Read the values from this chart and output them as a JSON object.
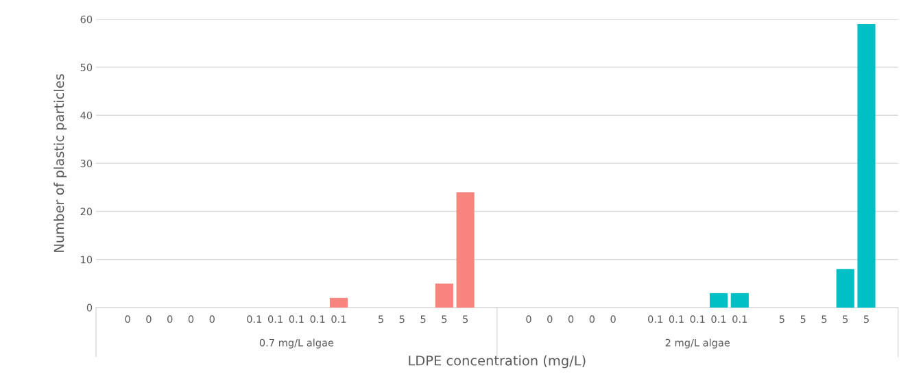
{
  "chart_data": {
    "type": "bar",
    "xlabel": "LDPE concentration (mg/L)",
    "ylabel": "Number of plastic particles",
    "categories": [
      null,
      "0",
      "0",
      "0",
      "0",
      "0",
      null,
      "0.1",
      "0.1",
      "0.1",
      "0.1",
      "0.1",
      null,
      "5",
      "5",
      "5",
      "5",
      "5",
      null,
      null,
      "0",
      "0",
      "0",
      "0",
      "0",
      null,
      "0.1",
      "0.1",
      "0.1",
      "0.1",
      "0.1",
      null,
      "5",
      "5",
      "5",
      "5",
      "5",
      null
    ],
    "values": [
      null,
      0,
      0,
      0,
      0,
      0,
      null,
      0,
      0,
      0,
      0,
      2,
      null,
      0,
      0,
      0,
      5,
      24,
      null,
      null,
      0,
      0,
      0,
      0,
      0,
      null,
      0,
      0,
      0,
      3,
      3,
      null,
      0,
      0,
      0,
      8,
      59,
      null
    ],
    "colors": [
      null,
      "#f8857d",
      "#f8857d",
      "#f8857d",
      "#f8857d",
      "#f8857d",
      null,
      "#f8857d",
      "#f8857d",
      "#f8857d",
      "#f8857d",
      "#f8857d",
      null,
      "#f8857d",
      "#f8857d",
      "#f8857d",
      "#f8857d",
      "#f8857d",
      null,
      null,
      "#00c0c6",
      "#00c0c6",
      "#00c0c6",
      "#00c0c6",
      "#00c0c6",
      null,
      "#00c0c6",
      "#00c0c6",
      "#00c0c6",
      "#00c0c6",
      "#00c0c6",
      null,
      "#00c0c6",
      "#00c0c6",
      "#00c0c6",
      "#00c0c6",
      "#00c0c6",
      null
    ],
    "annotations": [
      "0.7 mg/L algae",
      "2 mg/L algae"
    ],
    "ylim": [
      0,
      60
    ],
    "yticks": [
      0,
      10,
      20,
      30,
      40,
      50,
      60
    ],
    "grid": "y"
  }
}
